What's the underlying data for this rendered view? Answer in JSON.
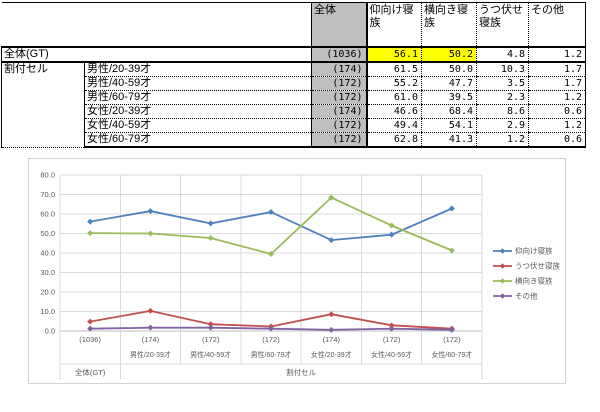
{
  "table": {
    "col_headers": [
      "全体",
      "仰向け寝\n族",
      "横向き寝\n族",
      "うつ伏せ\n寝族",
      "その他"
    ],
    "total_row": {
      "label": "全体(GT)",
      "n": "(1036)",
      "values": [
        "56.1",
        "50.2",
        "4.8",
        "1.2"
      ],
      "highlighted": [
        true,
        true,
        false,
        false
      ]
    },
    "group_label": "割付セル",
    "rows": [
      {
        "label": "男性/20-39才",
        "n": "(174)",
        "values": [
          "61.5",
          "50.0",
          "10.3",
          "1.7"
        ]
      },
      {
        "label": "男性/40-59才",
        "n": "(172)",
        "values": [
          "55.2",
          "47.7",
          "3.5",
          "1.7"
        ]
      },
      {
        "label": "男性/60-79才",
        "n": "(172)",
        "values": [
          "61.0",
          "39.5",
          "2.3",
          "1.2"
        ]
      },
      {
        "label": "女性/20-39才",
        "n": "(174)",
        "values": [
          "46.6",
          "68.4",
          "8.6",
          "0.6"
        ]
      },
      {
        "label": "女性/40-59才",
        "n": "(172)",
        "values": [
          "49.4",
          "54.1",
          "2.9",
          "1.2"
        ]
      },
      {
        "label": "女性/60-79才",
        "n": "(172)",
        "values": [
          "62.8",
          "41.3",
          "1.2",
          "0.6"
        ]
      }
    ],
    "colors": {
      "header_fill": "#bfbfbf",
      "highlight": "#ffff00"
    }
  },
  "chart_data": {
    "type": "line",
    "title": "",
    "xlabel": "",
    "ylabel": "",
    "ylim": [
      0,
      80
    ],
    "ytick_labels": [
      "80.0",
      "70.0",
      "60.0",
      "50.0",
      "40.0",
      "30.0",
      "20.0",
      "10.0",
      "0.0"
    ],
    "grid": true,
    "legend_position": "right",
    "categories": [
      "(1036)",
      "(174)",
      "(172)",
      "(172)",
      "(174)",
      "(172)",
      "(172)"
    ],
    "category_names": [
      "",
      "男性/20-39才",
      "男性/40-59才",
      "男性/60-79才",
      "女性/20-39才",
      "女性/40-59才",
      "女性/60-79才"
    ],
    "category_groups": [
      {
        "label": "全体(GT)",
        "from": 0,
        "to": 0
      },
      {
        "label": "割付セル",
        "from": 1,
        "to": 6
      }
    ],
    "series": [
      {
        "name": "仰向け寝族",
        "color": "#4F81BD",
        "values": [
          56.1,
          61.5,
          55.2,
          61.0,
          46.6,
          49.4,
          62.8
        ]
      },
      {
        "name": "うつ伏せ寝族",
        "color": "#C0504D",
        "values": [
          4.8,
          10.3,
          3.5,
          2.3,
          8.6,
          2.9,
          1.2
        ]
      },
      {
        "name": "横向き寝族",
        "color": "#9BBB59",
        "values": [
          50.2,
          50.0,
          47.7,
          39.5,
          68.4,
          54.1,
          41.3
        ]
      },
      {
        "name": "その他",
        "color": "#8064A2",
        "values": [
          1.2,
          1.7,
          1.7,
          1.2,
          0.6,
          1.2,
          0.6
        ]
      }
    ],
    "axis_text_color": "#595959",
    "gridline_color": "#d9d9d9",
    "axis_line_color": "#bfbfbf",
    "chart_border_color": "#d3d3d3"
  }
}
